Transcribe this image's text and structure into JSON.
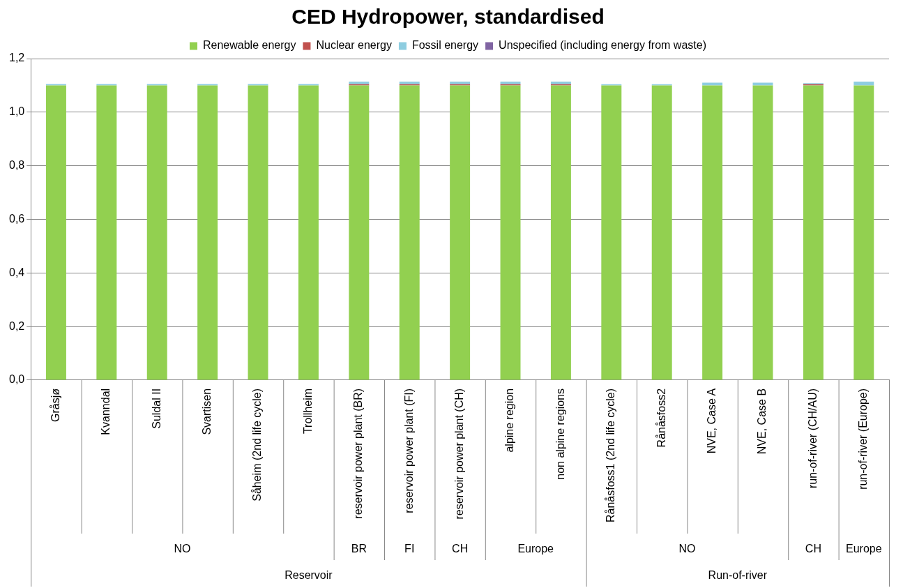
{
  "chart_data": {
    "type": "bar",
    "title": "CED Hydropower, standardised",
    "stacked": true,
    "legend": "top",
    "grid": "y",
    "categories": [
      "Gråsjø",
      "Kvanndal",
      "Suldal II",
      "Svartisen",
      "Såheim (2nd life cycle)",
      "Trollheim",
      "reservoir power plant (BR)",
      "reservoir power plant (FI)",
      "reservoir power plant (CH)",
      "alpine region",
      "non alpine regions",
      "Rånåsfoss1 (2nd life cycle)",
      "Rånåsfoss2",
      "NVE, Case A",
      "NVE, Case B",
      "run-of-river (CH/AU)",
      "run-of-river (Europe)"
    ],
    "series": [
      {
        "name": "Renewable energy",
        "color": "#92d050",
        "values": [
          1.1,
          1.1,
          1.1,
          1.1,
          1.1,
          1.1,
          1.1,
          1.1,
          1.1,
          1.1,
          1.1,
          1.1,
          1.1,
          1.1,
          1.1,
          1.1,
          1.1
        ]
      },
      {
        "name": "Nuclear energy",
        "color": "#c0504d",
        "values": [
          0,
          0,
          0,
          0,
          0,
          0,
          0.004,
          0.004,
          0.004,
          0.004,
          0.004,
          0,
          0,
          0,
          0,
          0.004,
          0
        ]
      },
      {
        "name": "Fossil energy",
        "color": "#8ecde0",
        "values": [
          0.005,
          0.005,
          0.005,
          0.005,
          0.005,
          0.005,
          0.01,
          0.01,
          0.01,
          0.01,
          0.01,
          0.004,
          0.004,
          0.01,
          0.01,
          0.004,
          0.014
        ]
      },
      {
        "name": "Unspecified (including energy from waste)",
        "color": "#8064a2",
        "values": [
          0,
          0,
          0,
          0,
          0,
          0,
          0,
          0,
          0,
          0,
          0,
          0,
          0,
          0,
          0,
          0,
          0
        ]
      }
    ],
    "ylim": [
      0,
      1.2
    ],
    "yticks": [
      {
        "value": 0,
        "label": "0,0"
      },
      {
        "value": 0.2,
        "label": "0,2"
      },
      {
        "value": 0.4,
        "label": "0,4"
      },
      {
        "value": 0.6,
        "label": "0,6"
      },
      {
        "value": 0.8,
        "label": "0,8"
      },
      {
        "value": 1,
        "label": "1,0"
      },
      {
        "value": 1.2,
        "label": "1,2"
      }
    ],
    "annotations": [
      "NO",
      "BR",
      "FI",
      "CH",
      "Europe",
      "NO",
      "CH",
      "Europe",
      "Reservoir",
      "Run-of-river"
    ]
  }
}
